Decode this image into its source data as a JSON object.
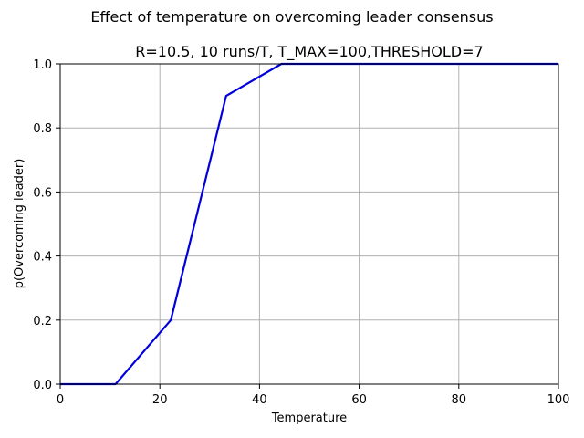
{
  "chart_data": {
    "type": "line",
    "suptitle": "Effect of temperature on overcoming leader consensus",
    "title": "R=10.5, 10 runs/T, T_MAX=100,THRESHOLD=7",
    "xlabel": "Temperature",
    "ylabel": "p(Overcoming leader)",
    "xlim": [
      0,
      100
    ],
    "ylim": [
      0,
      1
    ],
    "xticks": [
      0,
      20,
      40,
      60,
      80,
      100
    ],
    "xtick_labels": [
      "0",
      "20",
      "40",
      "60",
      "80",
      "100"
    ],
    "yticks": [
      0,
      0.2,
      0.4,
      0.6,
      0.8,
      1.0
    ],
    "ytick_labels": [
      "0.0",
      "0.2",
      "0.4",
      "0.6",
      "0.8",
      "1.0"
    ],
    "grid": true,
    "series": [
      {
        "color": "#0000dd",
        "x": [
          0,
          11.1,
          22.2,
          33.3,
          44.4,
          55.6,
          66.7,
          77.8,
          88.9,
          100
        ],
        "y": [
          0.0,
          0.0,
          0.2,
          0.9,
          1.0,
          1.0,
          1.0,
          1.0,
          1.0,
          1.0
        ]
      }
    ]
  }
}
